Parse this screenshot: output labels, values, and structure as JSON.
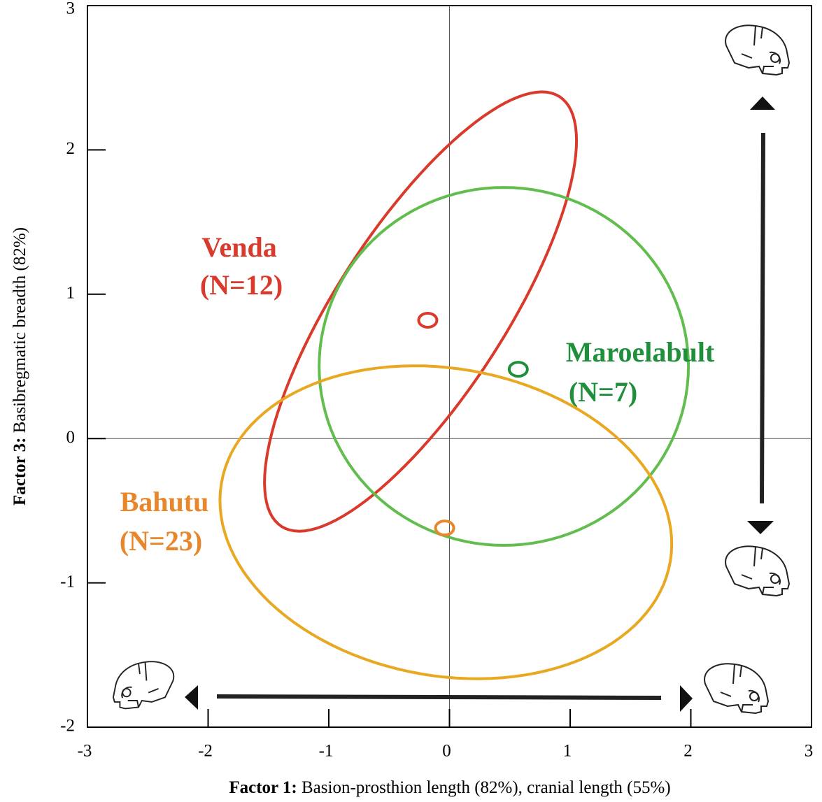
{
  "chart_data": {
    "type": "scatter",
    "x_label_bold": "Factor 1:",
    "x_label": " Basion-prosthion length (82%), cranial length (55%)",
    "y_label_bold": "Factor 3:",
    "y_label": " Basibregmatic breadth (82%)",
    "xlim": [
      -3,
      3
    ],
    "ylim": [
      -2,
      3
    ],
    "xticks": [
      -3,
      -2,
      -1,
      0,
      1,
      2,
      3
    ],
    "yticks": [
      -2,
      -1,
      0,
      1,
      2,
      3
    ],
    "reference_lines": {
      "x": 0,
      "y": 0
    },
    "series": [
      {
        "name": "Venda",
        "n_label": "(N=12)",
        "color": "#d93a2b",
        "ellipse_color": "#d93a2b",
        "x": [
          -0.18
        ],
        "y": [
          0.82
        ],
        "ellipse": {
          "center": [
            -0.24,
            0.88
          ],
          "axis1": [
            1.15,
            1.49
          ],
          "axis2": [
            0.59,
            -0.31
          ]
        }
      },
      {
        "name": "Maroelabult",
        "n_label": "(N=7)",
        "color": "#1f8f3c",
        "ellipse_color": "#62bd4f",
        "x": [
          0.57
        ],
        "y": [
          0.48
        ],
        "ellipse": {
          "center": [
            0.45,
            0.5
          ],
          "axis1": [
            1.53,
            0
          ],
          "axis2": [
            0,
            1.24
          ]
        }
      },
      {
        "name": "Bahutu",
        "n_label": "(N=23)",
        "color": "#e8862c",
        "ellipse_color": "#e8a822",
        "x": [
          -0.04
        ],
        "y": [
          -0.62
        ],
        "ellipse": {
          "center": [
            -0.03,
            -0.58
          ],
          "axis1": [
            1.86,
            -0.27
          ],
          "axis2": [
            -0.21,
            -1.05
          ]
        }
      }
    ]
  }
}
